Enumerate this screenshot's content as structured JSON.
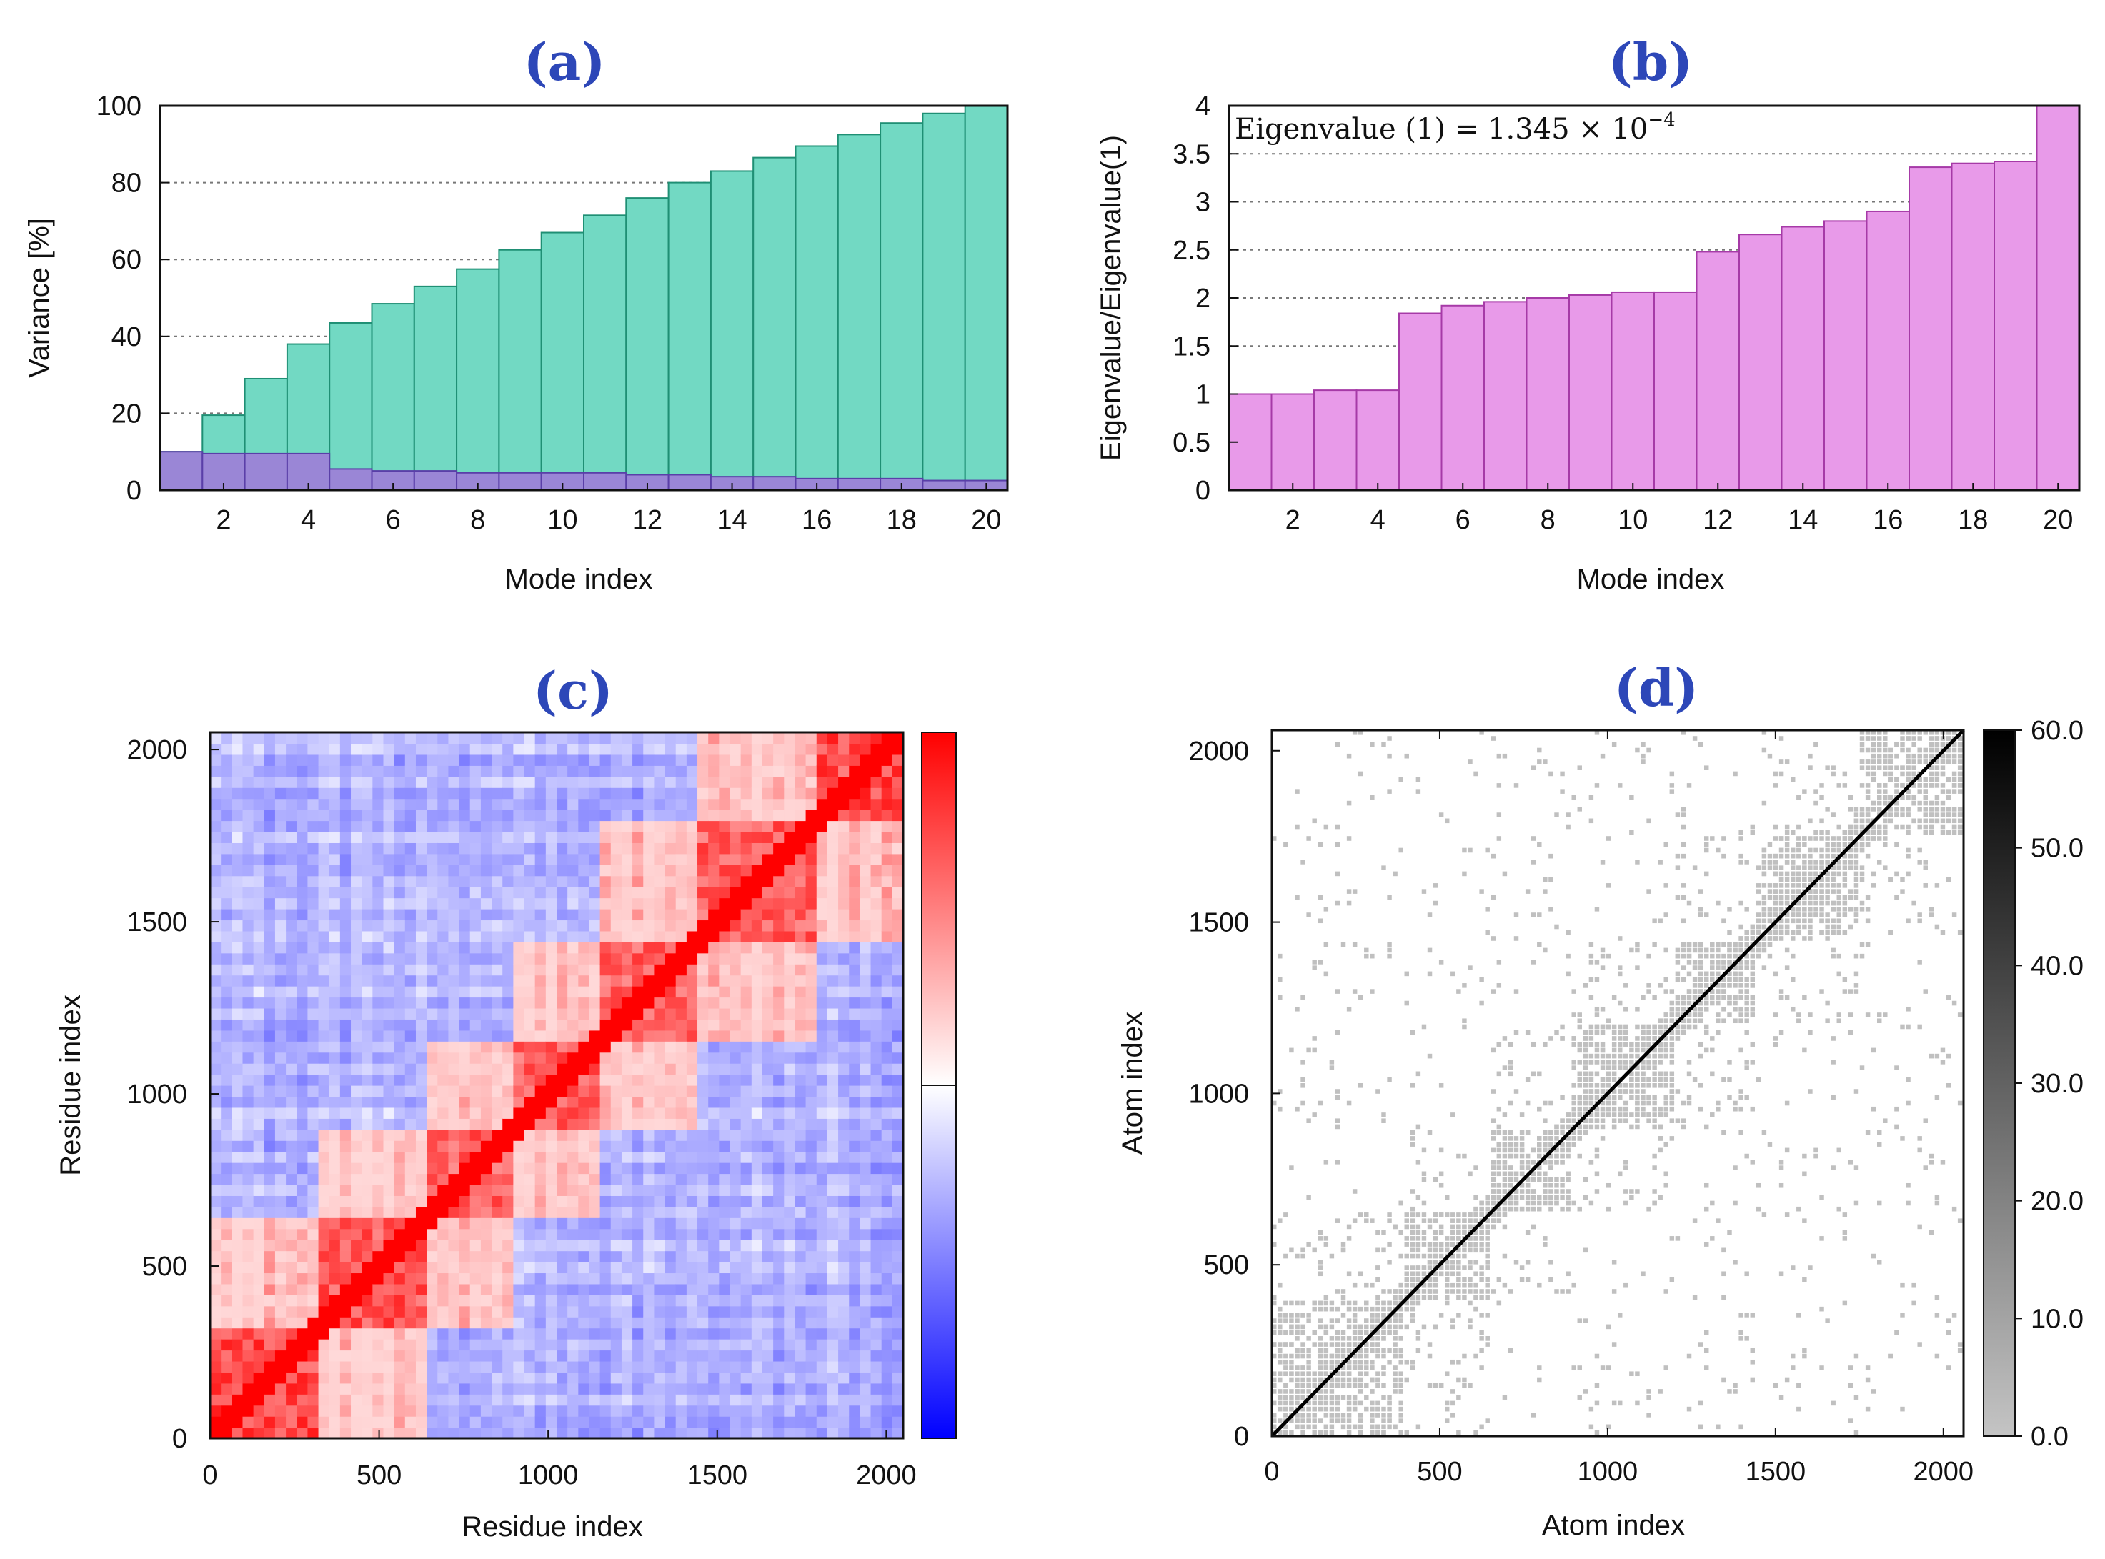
{
  "panels": {
    "a": "(a)",
    "b": "(b)",
    "c": "(c)",
    "d": "(d)"
  },
  "colors": {
    "teal": "#72d9c3",
    "teal_edge": "#1f8f74",
    "purple": "#9a86d6",
    "purple_edge": "#5a3fa8",
    "magenta": "#e89ae9",
    "magenta_edge": "#a63aa7",
    "label_blue": "#2d47b8"
  },
  "chart_data": [
    {
      "id": "a",
      "type": "bar",
      "title": "(a)",
      "xlabel": "Mode index",
      "ylabel": "Variance [%]",
      "ylim": [
        0,
        100
      ],
      "yticks": [
        "0",
        "20",
        "40",
        "60",
        "80",
        "100"
      ],
      "xticks": [
        "2",
        "4",
        "6",
        "8",
        "10",
        "12",
        "14",
        "16",
        "18",
        "20"
      ],
      "categories": [
        "1",
        "2",
        "3",
        "4",
        "5",
        "6",
        "7",
        "8",
        "9",
        "10",
        "11",
        "12",
        "13",
        "14",
        "15",
        "16",
        "17",
        "18",
        "19",
        "20"
      ],
      "series": [
        {
          "name": "Cumulative variance",
          "values": [
            10,
            19.5,
            29,
            38,
            43.5,
            48.5,
            53,
            57.5,
            62.5,
            67,
            71.5,
            76,
            80,
            83,
            86.5,
            89.5,
            92.5,
            95.5,
            98,
            100
          ]
        },
        {
          "name": "Individual variance",
          "values": [
            10,
            9.5,
            9.5,
            9.5,
            5.5,
            5,
            5,
            4.5,
            4.5,
            4.5,
            4.5,
            4,
            4,
            3.5,
            3.5,
            3,
            3,
            3,
            2.5,
            2.5
          ]
        }
      ]
    },
    {
      "id": "b",
      "type": "bar",
      "title": "(b)",
      "xlabel": "Mode index",
      "ylabel": "Eigenvalue/Eigenvalue(1)",
      "ylim": [
        0,
        4
      ],
      "yticks": [
        "0",
        "0.5",
        "1",
        "1.5",
        "2",
        "2.5",
        "3",
        "3.5",
        "4"
      ],
      "xticks": [
        "2",
        "4",
        "6",
        "8",
        "10",
        "12",
        "14",
        "16",
        "18",
        "20"
      ],
      "annotation": "Eigenvalue (1) = 1.345 × 10",
      "annotation_exp": "−4",
      "categories": [
        "1",
        "2",
        "3",
        "4",
        "5",
        "6",
        "7",
        "8",
        "9",
        "10",
        "11",
        "12",
        "13",
        "14",
        "15",
        "16",
        "17",
        "18",
        "19",
        "20"
      ],
      "values": [
        1.0,
        1.0,
        1.04,
        1.04,
        1.84,
        1.92,
        1.96,
        2.0,
        2.03,
        2.06,
        2.06,
        2.48,
        2.66,
        2.74,
        2.8,
        2.9,
        3.36,
        3.4,
        3.42,
        4.0
      ]
    },
    {
      "id": "c",
      "type": "heatmap",
      "title": "(c)",
      "xlabel": "Residue index",
      "ylabel": "Residue index",
      "xlim": [
        0,
        2050
      ],
      "ylim": [
        0,
        2050
      ],
      "xticks": [
        "0",
        "500",
        "1000",
        "1500",
        "2000"
      ],
      "yticks": [
        "0",
        "500",
        "1000",
        "1500",
        "2000"
      ],
      "tick_values": [
        0,
        500,
        1000,
        1500,
        2000
      ],
      "colorbar": {
        "low": "#0000ff",
        "mid": "#ffffff",
        "high": "#ff0000",
        "range": [
          -1,
          1
        ]
      },
      "blocks": [
        {
          "start": 0,
          "end": 330,
          "strength": 0.9
        },
        {
          "start": 330,
          "end": 640,
          "strength": 0.85
        },
        {
          "start": 580,
          "end": 900,
          "strength": 0.8
        },
        {
          "start": 880,
          "end": 1150,
          "strength": 0.8
        },
        {
          "start": 1150,
          "end": 1430,
          "strength": 0.8
        },
        {
          "start": 1430,
          "end": 1800,
          "strength": 0.8
        },
        {
          "start": 1780,
          "end": 2050,
          "strength": 0.9
        }
      ]
    },
    {
      "id": "d",
      "type": "heatmap",
      "title": "(d)",
      "xlabel": "Atom index",
      "ylabel": "Atom index",
      "xlim": [
        0,
        2060
      ],
      "ylim": [
        0,
        2060
      ],
      "xticks": [
        "0",
        "500",
        "1000",
        "1500",
        "2000"
      ],
      "yticks": [
        "0",
        "500",
        "1000",
        "1500",
        "2000"
      ],
      "tick_values": [
        0,
        500,
        1000,
        1500,
        2000
      ],
      "colorbar": {
        "low": "#c4c4c4",
        "high": "#000000",
        "range": [
          0,
          60
        ],
        "ticks": [
          "0.0",
          "10.0",
          "20.0",
          "30.0",
          "40.0",
          "50.0",
          "60.0"
        ]
      },
      "diagonal_value": 60,
      "contact_value": 8
    }
  ]
}
